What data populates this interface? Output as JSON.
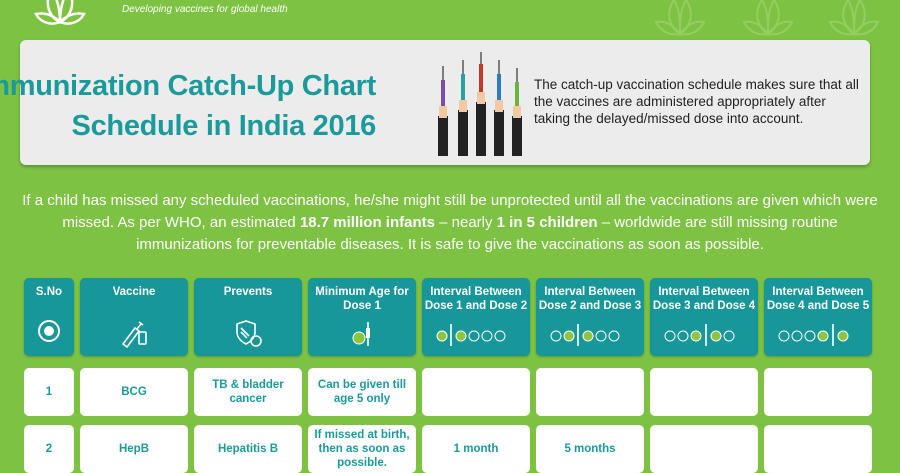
{
  "brand": {
    "tagline": "Developing vaccines for global health"
  },
  "header": {
    "title_line1": "Immunization Catch-Up Chart",
    "title_line2": "Schedule in India 2016",
    "description": "The catch-up vaccination schedule makes sure that all the vaccines are administered appropriately after taking the delayed/missed dose into account."
  },
  "intro": {
    "part1": "If a child has missed any scheduled vaccinations, he/she might still be unprotected until all the vaccinations are given which were missed. As per WHO, an estimated ",
    "highlight1": "18.7 million infants",
    "part2": " – nearly ",
    "highlight2": "1 in 5 children",
    "part3": " – worldwide are still missing routine immunizations for preventable diseases. It is safe to give the vaccinations as soon as possible."
  },
  "table": {
    "headers": [
      "S.No",
      "Vaccine",
      "Prevents",
      "Minimum Age for Dose 1",
      "Interval Between Dose 1 and Dose 2",
      "Interval Between Dose 2 and Dose 3",
      "Interval Between Dose 3 and Dose 4",
      "Interval Between Dose 4 and Dose 5"
    ],
    "rows": [
      [
        "1",
        "BCG",
        "TB & bladder cancer",
        "Can be given till age 5 only",
        "",
        "",
        "",
        ""
      ],
      [
        "2",
        "HepB",
        "Hepatitis B",
        "If missed at birth, then as soon as possible.",
        "1 month",
        "5 months",
        "",
        ""
      ]
    ]
  },
  "colors": {
    "background": "#7dc243",
    "teal": "#17979a",
    "card": "#ececec",
    "title": "#1a9a9a"
  }
}
